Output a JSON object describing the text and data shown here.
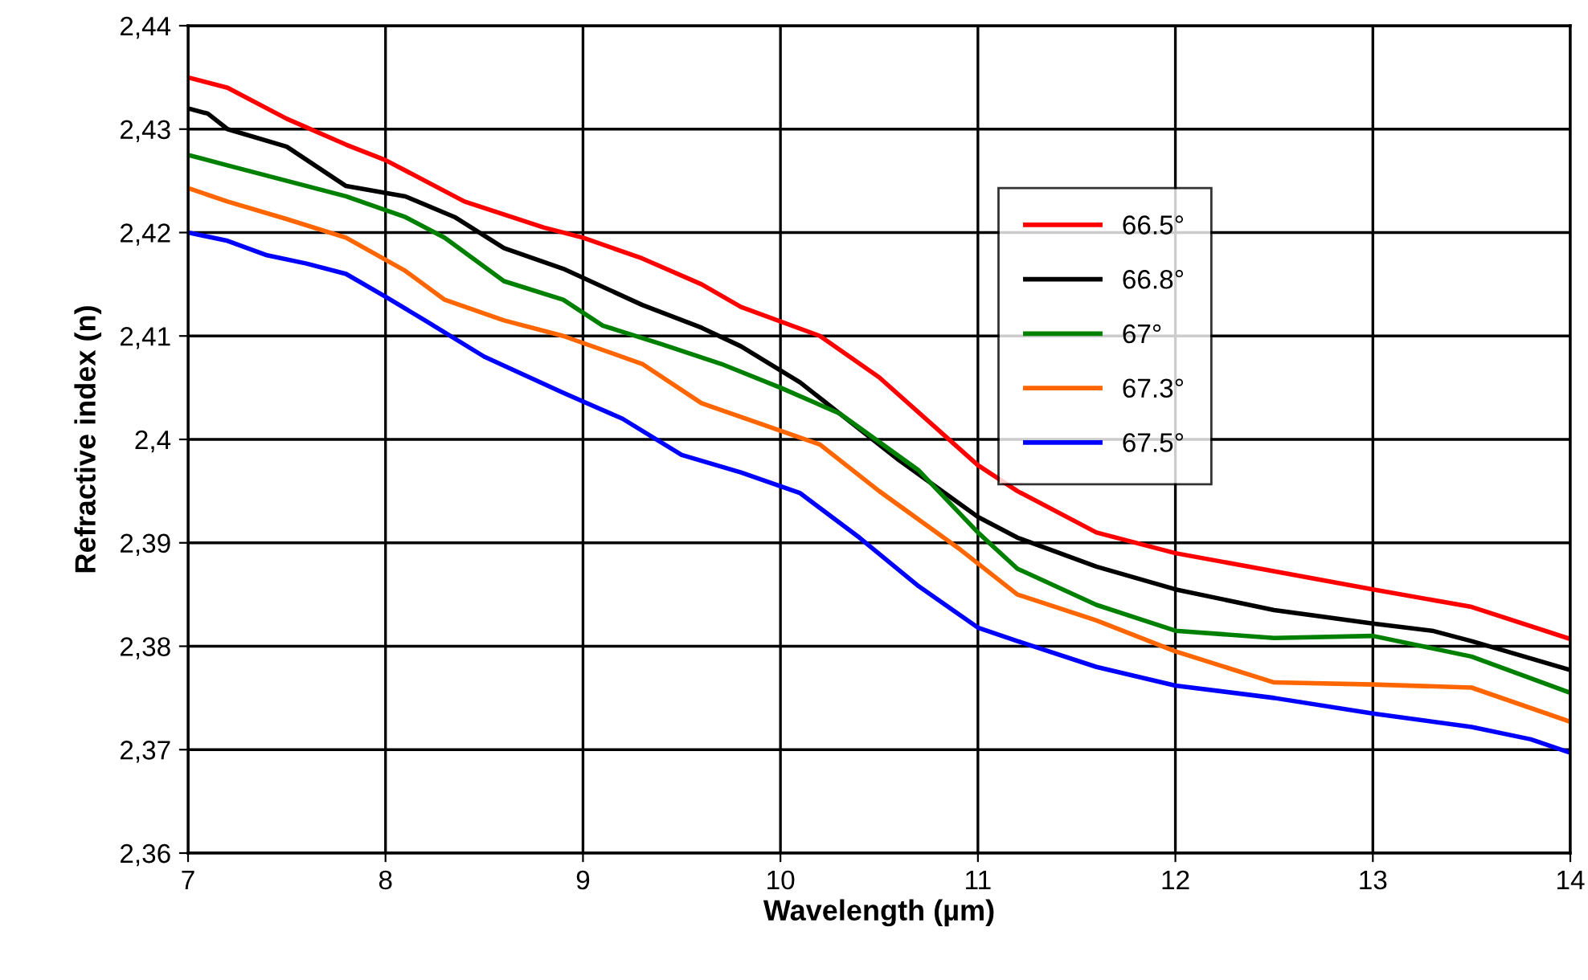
{
  "chart_data": {
    "type": "line",
    "xlabel": "Wavelength (µm)",
    "ylabel": "Refractive index (n)",
    "xlim": [
      7,
      14
    ],
    "xticks": [
      7,
      8,
      9,
      10,
      11,
      12,
      13,
      14
    ],
    "ylim": [
      2.36,
      2.44
    ],
    "yticks": [
      {
        "value": 2.36,
        "label": "2,36"
      },
      {
        "value": 2.37,
        "label": "2,37"
      },
      {
        "value": 2.38,
        "label": "2,38"
      },
      {
        "value": 2.39,
        "label": "2,39"
      },
      {
        "value": 2.4,
        "label": "2,4"
      },
      {
        "value": 2.41,
        "label": "2,41"
      },
      {
        "value": 2.42,
        "label": "2,42"
      },
      {
        "value": 2.43,
        "label": "2,43"
      },
      {
        "value": 2.44,
        "label": "2,44"
      }
    ],
    "grid": true,
    "legend": "top right",
    "marker": "none",
    "line_style": "solid",
    "series": [
      {
        "name": "66.5°",
        "color": "#ff0000",
        "x": [
          7,
          7.2,
          7.5,
          7.8,
          8,
          8.4,
          8.8,
          9,
          9.3,
          9.6,
          9.8,
          10.2,
          10.5,
          11,
          11.2,
          11.6,
          12,
          13,
          13.5,
          14
        ],
        "values": [
          2.435,
          2.434,
          2.431,
          2.4285,
          2.427,
          2.423,
          2.4205,
          2.4195,
          2.4175,
          2.415,
          2.4128,
          2.41,
          2.406,
          2.3975,
          2.395,
          2.391,
          2.389,
          2.3855,
          2.3838,
          2.3807
        ]
      },
      {
        "name": "66.8°",
        "color": "#000000",
        "x": [
          7,
          7.1,
          7.2,
          7.5,
          7.8,
          8.1,
          8.35,
          8.6,
          8.9,
          9.3,
          9.6,
          9.8,
          10.1,
          10.3,
          10.6,
          11,
          11.2,
          11.6,
          12,
          12.5,
          13,
          13.3,
          13.5,
          14
        ],
        "values": [
          2.432,
          2.4315,
          2.43,
          2.4283,
          2.4245,
          2.4235,
          2.4215,
          2.4185,
          2.4165,
          2.413,
          2.4108,
          2.409,
          2.4055,
          2.4025,
          2.398,
          2.3925,
          2.3905,
          2.3877,
          2.3855,
          2.3835,
          2.3822,
          2.3815,
          2.3805,
          2.3777
        ]
      },
      {
        "name": "67°",
        "color": "#008000",
        "x": [
          7,
          7.2,
          7.5,
          7.8,
          8.1,
          8.3,
          8.6,
          8.9,
          9.1,
          9.4,
          9.7,
          10,
          10.3,
          10.7,
          11,
          11.2,
          11.6,
          12,
          12.5,
          13,
          13.5,
          14
        ],
        "values": [
          2.4275,
          2.4265,
          2.425,
          2.4235,
          2.4215,
          2.4195,
          2.4153,
          2.4135,
          2.411,
          2.4092,
          2.4073,
          2.405,
          2.4025,
          2.397,
          2.391,
          2.3875,
          2.384,
          2.3815,
          2.3808,
          2.381,
          2.379,
          2.3755
        ]
      },
      {
        "name": "67.3°",
        "color": "#ff6600",
        "x": [
          7,
          7.2,
          7.5,
          7.8,
          8.1,
          8.3,
          8.6,
          8.9,
          9.3,
          9.6,
          9.9,
          10.2,
          10.5,
          10.9,
          11.2,
          11.6,
          12,
          12.5,
          13,
          13.5,
          14
        ],
        "values": [
          2.4243,
          2.423,
          2.4213,
          2.4195,
          2.4163,
          2.4135,
          2.4115,
          2.41,
          2.4073,
          2.4035,
          2.4015,
          2.3995,
          2.395,
          2.3895,
          2.385,
          2.3825,
          2.3795,
          2.3765,
          2.3763,
          2.376,
          2.3727
        ]
      },
      {
        "name": "67.5°",
        "color": "#0000ff",
        "x": [
          7,
          7.2,
          7.4,
          7.6,
          7.8,
          8,
          8.2,
          8.5,
          8.9,
          9.2,
          9.5,
          9.8,
          10.1,
          10.4,
          10.7,
          11,
          11.2,
          11.6,
          12,
          12.5,
          13,
          13.5,
          13.8,
          14
        ],
        "values": [
          2.42,
          2.4192,
          2.4178,
          2.417,
          2.416,
          2.4138,
          2.4115,
          2.408,
          2.4045,
          2.402,
          2.3985,
          2.3968,
          2.3948,
          2.3905,
          2.3858,
          2.3818,
          2.3805,
          2.378,
          2.3762,
          2.375,
          2.3735,
          2.3722,
          2.371,
          2.3697
        ]
      }
    ]
  }
}
